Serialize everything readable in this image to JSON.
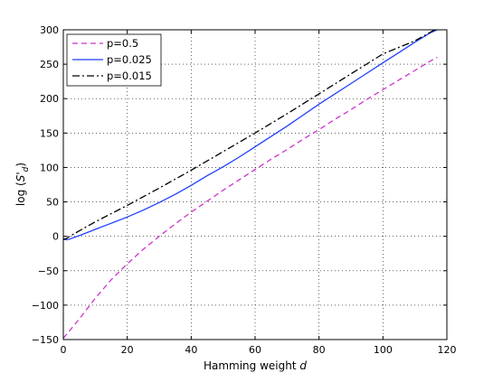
{
  "chart_data": {
    "type": "line",
    "title": "",
    "xlabel": "Hamming weight",
    "xlabel_var": "d",
    "ylabel_prefix": "log (",
    "ylabel_var": "S'",
    "ylabel_sub": "d",
    "ylabel_suffix": ")",
    "xlim": [
      0,
      120
    ],
    "ylim": [
      -150,
      300
    ],
    "xticks": [
      0,
      20,
      40,
      60,
      80,
      100,
      120
    ],
    "yticks": [
      -150,
      -100,
      -50,
      0,
      50,
      100,
      150,
      200,
      250,
      300
    ],
    "xtick_labels": [
      "0",
      "20",
      "40",
      "60",
      "80",
      "100",
      "120"
    ],
    "ytick_labels": [
      "−150",
      "−100",
      "−50",
      "0",
      "50",
      "100",
      "150",
      "200",
      "250",
      "300"
    ],
    "grid": true,
    "legend_position": "top-left",
    "series": [
      {
        "name": "p=0.5",
        "color": "#cc33cc",
        "style": "dashed",
        "x": [
          0,
          2,
          5,
          10,
          15,
          20,
          25,
          30,
          35,
          40,
          45,
          50,
          55,
          60,
          65,
          70,
          75,
          80,
          85,
          90,
          95,
          100,
          105,
          110,
          115,
          117
        ],
        "y": [
          -148,
          -137,
          -120,
          -90,
          -63,
          -40,
          -19,
          0,
          18,
          35,
          51,
          67,
          82,
          97,
          112,
          126,
          141,
          155,
          170,
          184,
          199,
          213,
          227,
          241,
          255,
          260
        ]
      },
      {
        "name": "p=0.025",
        "color": "#1f3fff",
        "style": "solid",
        "x": [
          0,
          1,
          2,
          5,
          10,
          15,
          20,
          25,
          30,
          35,
          40,
          45,
          50,
          55,
          60,
          65,
          70,
          75,
          80,
          85,
          90,
          95,
          100,
          105,
          110,
          115,
          118
        ],
        "y": [
          -3,
          -5,
          -4,
          1,
          10,
          19,
          28,
          38,
          49,
          61,
          74,
          88,
          101,
          115,
          130,
          145,
          160,
          176,
          192,
          207,
          222,
          237,
          252,
          267,
          282,
          296,
          302
        ]
      },
      {
        "name": "p=0.015",
        "color": "#000000",
        "style": "dashdot",
        "x": [
          0,
          1,
          2,
          5,
          10,
          20,
          30,
          40,
          50,
          60,
          70,
          80,
          90,
          100,
          110,
          117
        ],
        "y": [
          -5,
          -3,
          0,
          8,
          21,
          45,
          70,
          96,
          123,
          150,
          178,
          207,
          236,
          265,
          284,
          302
        ]
      }
    ]
  }
}
